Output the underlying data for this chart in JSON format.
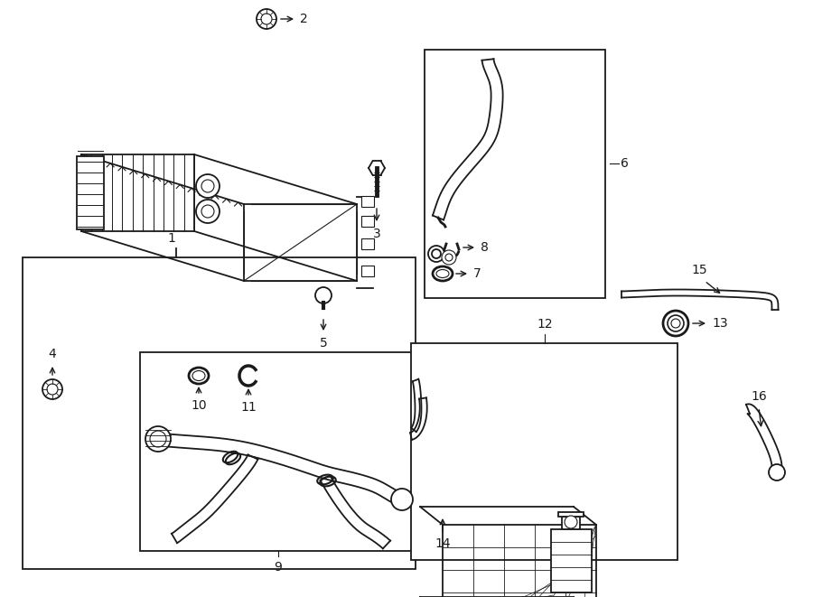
{
  "bg_color": "#ffffff",
  "line_color": "#1a1a1a",
  "boxes": {
    "radiator": [
      25,
      285,
      435,
      345
    ],
    "hose6": [
      470,
      55,
      200,
      275
    ],
    "hose9": [
      155,
      390,
      305,
      220
    ],
    "reservoir": [
      455,
      380,
      295,
      240
    ]
  },
  "labels": {
    "1": [
      195,
      275,
      195,
      260
    ],
    "2": [
      295,
      30,
      310,
      30
    ],
    "3": [
      415,
      225,
      415,
      200
    ],
    "4": [
      60,
      420,
      60,
      445
    ],
    "5": [
      360,
      340,
      360,
      360
    ],
    "6": [
      685,
      195,
      695,
      195
    ],
    "7": [
      504,
      295,
      490,
      295
    ],
    "8": [
      540,
      265,
      555,
      265
    ],
    "9": [
      305,
      625,
      305,
      638
    ],
    "10": [
      215,
      410,
      215,
      395
    ],
    "11": [
      280,
      410,
      280,
      395
    ],
    "12": [
      595,
      373,
      595,
      358
    ],
    "13": [
      750,
      355,
      765,
      355
    ],
    "14": [
      495,
      600,
      495,
      615
    ],
    "15": [
      738,
      325,
      738,
      310
    ],
    "16": [
      840,
      468,
      840,
      453
    ]
  }
}
